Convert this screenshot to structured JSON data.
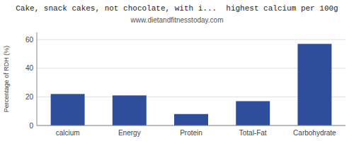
{
  "chart_data": {
    "type": "bar",
    "title": "Cake, snack cakes, not chocolate, with i...  highest calcium per 100g",
    "subtitle": "www.dietandfitnesstoday.com",
    "categories": [
      "calcium",
      "Energy",
      "Protein",
      "Total-Fat",
      "Carbohydrate"
    ],
    "values": [
      22,
      21,
      8,
      17,
      57
    ],
    "color": "#2e4d9b",
    "ylabel": "Percentage of RDH (%)",
    "ylim": [
      0,
      65
    ],
    "yticks": [
      0,
      20,
      40,
      60
    ],
    "grid": true
  }
}
